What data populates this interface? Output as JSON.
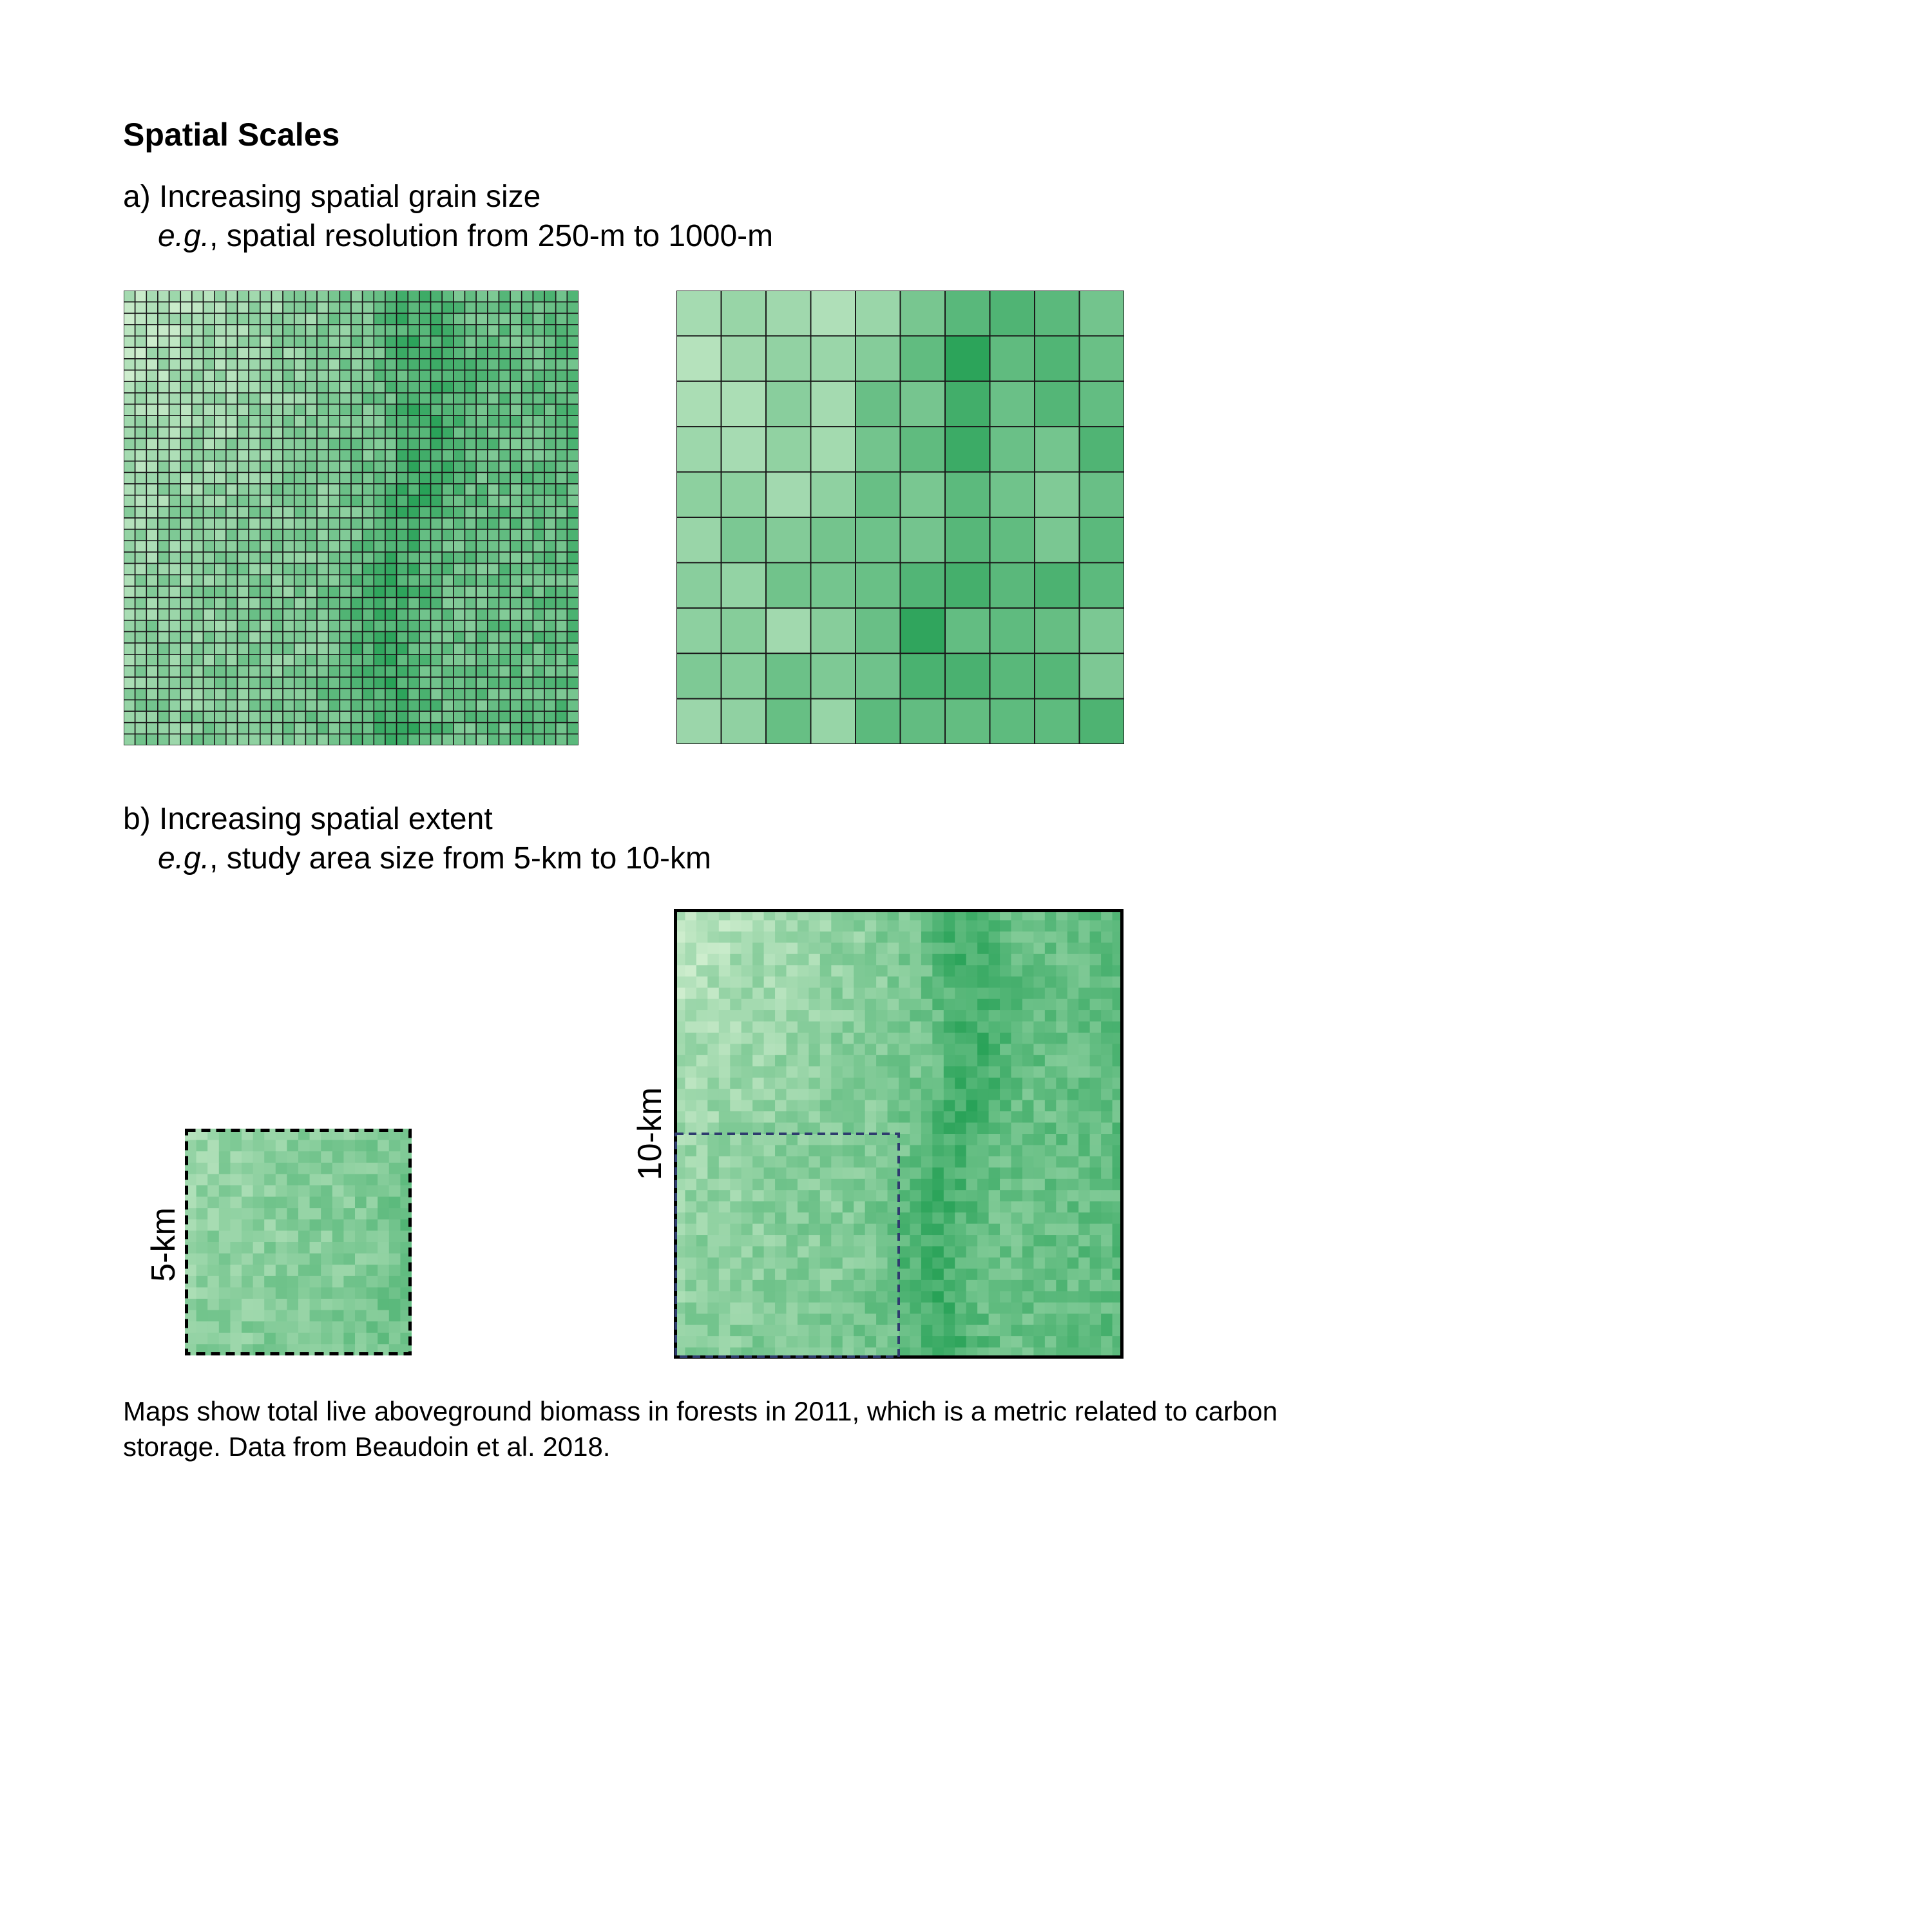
{
  "title": "Spatial Scales",
  "panel_a": {
    "heading": "a) Increasing spatial grain size",
    "example_prefix": "e.g.",
    "example_text": ", spatial resolution from 250-m to 1000-m"
  },
  "panel_b": {
    "heading": "b) Increasing spatial extent",
    "example_prefix": "e.g.",
    "example_text": ", study area size from 5-km to 10-km",
    "small_map_label": "5-km",
    "large_map_label": "10-km"
  },
  "caption": "Maps show total live aboveground biomass in forests in 2011, which is a metric related to carbon storage. Data from Beaudoin et al. 2018.",
  "colors": {
    "light_green": "#d8f2d5",
    "dark_green": "#0e9645",
    "grid_line": "#1a1a1a",
    "inset_outline": "#2e3b6e"
  },
  "maps": {
    "fine_grid_cells": 40,
    "coarse_grid_cells": 10,
    "small_extent_cells": 20,
    "large_extent_cells": 40
  }
}
